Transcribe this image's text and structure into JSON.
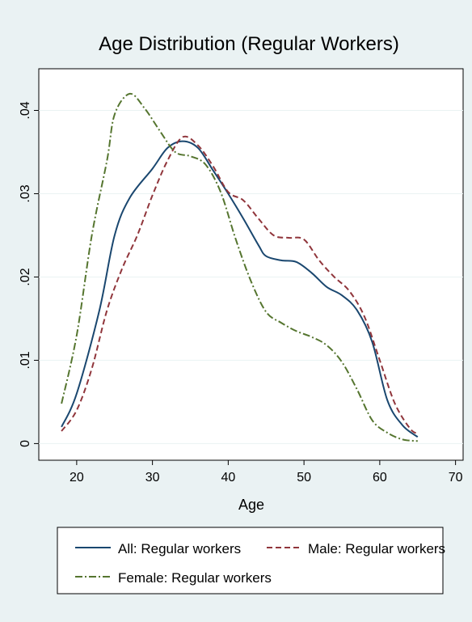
{
  "chart_data": {
    "type": "line",
    "title": "Age Distribution (Regular Workers)",
    "xlabel": "Age",
    "ylabel": "",
    "xlim": [
      15,
      71
    ],
    "ylim": [
      -0.002,
      0.045
    ],
    "xticks": [
      20,
      30,
      40,
      50,
      60,
      70
    ],
    "xtick_labels": [
      "20",
      "30",
      "40",
      "50",
      "60",
      "70"
    ],
    "yticks": [
      0,
      0.01,
      0.02,
      0.03,
      0.04
    ],
    "ytick_labels": [
      "0",
      ".01",
      ".02",
      ".03",
      ".04"
    ],
    "grid": true,
    "legend_position": "bottom",
    "series": [
      {
        "name": "All: Regular workers",
        "color": "#1a476f",
        "dash": "solid",
        "points": [
          [
            18,
            0.002
          ],
          [
            20,
            0.006
          ],
          [
            23,
            0.016
          ],
          [
            25,
            0.025
          ],
          [
            27,
            0.0295
          ],
          [
            30,
            0.033
          ],
          [
            32,
            0.0355
          ],
          [
            34,
            0.0363
          ],
          [
            36,
            0.0355
          ],
          [
            38,
            0.0328
          ],
          [
            40,
            0.03
          ],
          [
            42,
            0.027
          ],
          [
            44,
            0.0238
          ],
          [
            45,
            0.0225
          ],
          [
            47,
            0.022
          ],
          [
            49,
            0.0218
          ],
          [
            51,
            0.0205
          ],
          [
            53,
            0.0188
          ],
          [
            55,
            0.0178
          ],
          [
            57,
            0.016
          ],
          [
            59,
            0.0122
          ],
          [
            61,
            0.0052
          ],
          [
            63,
            0.0022
          ],
          [
            65,
            0.0008
          ]
        ]
      },
      {
        "name": "Male: Regular workers",
        "color": "#90353b",
        "dash": "dash",
        "points": [
          [
            18,
            0.0015
          ],
          [
            20,
            0.004
          ],
          [
            22,
            0.009
          ],
          [
            24,
            0.016
          ],
          [
            26,
            0.021
          ],
          [
            28,
            0.025
          ],
          [
            30,
            0.0298
          ],
          [
            32,
            0.034
          ],
          [
            34,
            0.0368
          ],
          [
            36,
            0.0358
          ],
          [
            38,
            0.0333
          ],
          [
            40,
            0.0302
          ],
          [
            42,
            0.0292
          ],
          [
            44,
            0.027
          ],
          [
            46,
            0.025
          ],
          [
            48,
            0.0247
          ],
          [
            50,
            0.0245
          ],
          [
            52,
            0.022
          ],
          [
            54,
            0.02
          ],
          [
            56,
            0.0183
          ],
          [
            58,
            0.0152
          ],
          [
            60,
            0.01
          ],
          [
            62,
            0.0048
          ],
          [
            64,
            0.0018
          ],
          [
            65,
            0.0012
          ]
        ]
      },
      {
        "name": "Female: Regular workers",
        "color": "#55752f",
        "dash": "dashdot",
        "points": [
          [
            18,
            0.0048
          ],
          [
            20,
            0.013
          ],
          [
            22,
            0.025
          ],
          [
            24,
            0.034
          ],
          [
            25,
            0.0395
          ],
          [
            27,
            0.042
          ],
          [
            29,
            0.0402
          ],
          [
            31,
            0.0375
          ],
          [
            33,
            0.035
          ],
          [
            35,
            0.0345
          ],
          [
            37,
            0.0335
          ],
          [
            39,
            0.0302
          ],
          [
            41,
            0.0245
          ],
          [
            43,
            0.0195
          ],
          [
            45,
            0.0158
          ],
          [
            47,
            0.0145
          ],
          [
            49,
            0.0135
          ],
          [
            51,
            0.0128
          ],
          [
            53,
            0.0118
          ],
          [
            55,
            0.0098
          ],
          [
            57,
            0.0065
          ],
          [
            59,
            0.0028
          ],
          [
            61,
            0.0013
          ],
          [
            63,
            0.0005
          ],
          [
            65,
            0.0003
          ]
        ]
      }
    ]
  }
}
